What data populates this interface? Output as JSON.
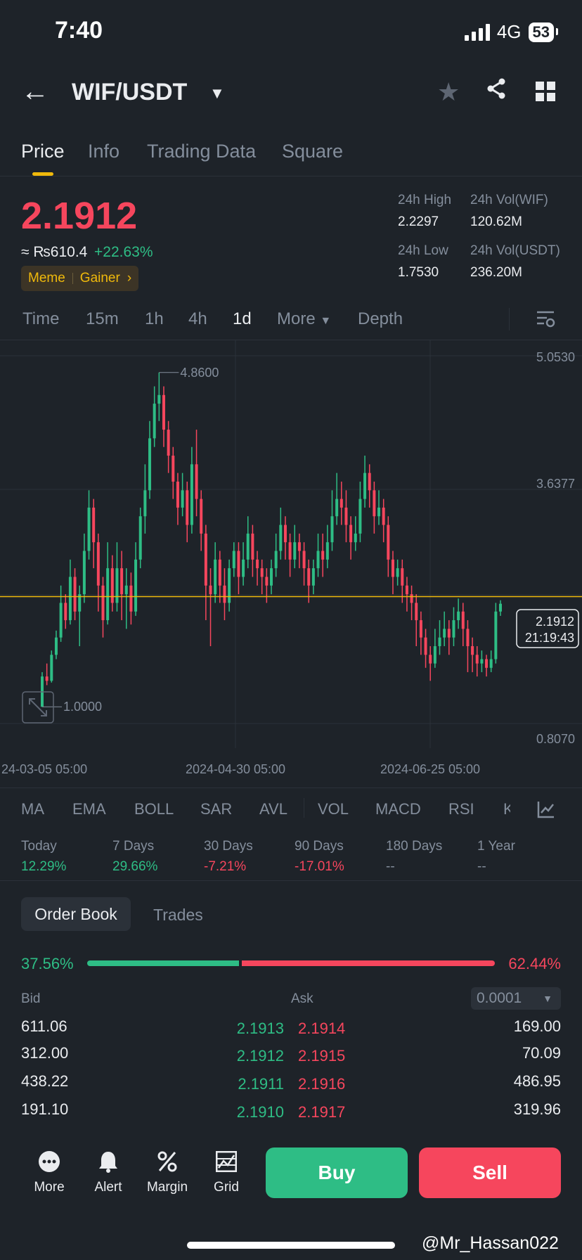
{
  "status": {
    "time": "7:40",
    "network": "4G",
    "battery": "53"
  },
  "header": {
    "pair": "WIF/USDT",
    "back_icon": "arrow-left-icon",
    "icons": [
      "star-icon",
      "share-icon",
      "grid-icon"
    ]
  },
  "tabs": [
    {
      "label": "Price",
      "active": true
    },
    {
      "label": "Info"
    },
    {
      "label": "Trading Data"
    },
    {
      "label": "Square"
    }
  ],
  "price": {
    "last": "2.1912",
    "fiat": "≈ ₨610.4",
    "change": "+22.63%",
    "tags": [
      "Meme",
      "Gainer"
    ],
    "stats": {
      "high_label": "24h High",
      "high": "2.2297",
      "low_label": "24h Low",
      "low": "1.7530",
      "vol_base_label": "24h Vol(WIF)",
      "vol_base": "120.62M",
      "vol_quote_label": "24h Vol(USDT)",
      "vol_quote": "236.20M"
    }
  },
  "intervals": [
    {
      "label": "Time"
    },
    {
      "label": "15m"
    },
    {
      "label": "1h"
    },
    {
      "label": "4h"
    },
    {
      "label": "1d",
      "active": true
    },
    {
      "label": "More"
    },
    {
      "label": "Depth"
    }
  ],
  "chart_data": {
    "type": "candlestick",
    "title": "",
    "y_ticks": [
      "5.0530",
      "3.6377",
      "0.8070"
    ],
    "x_ticks": [
      "24-03-05 05:00",
      "2024-04-30 05:00",
      "2024-06-25 05:00"
    ],
    "high_label": "4.8600",
    "low_label": "1.0000",
    "current_price": "2.1912",
    "countdown": "21:19:43",
    "ylim": [
      0.807,
      5.053
    ],
    "up_color": "#2ebd85",
    "down_color": "#f6465d",
    "candles": [
      [
        1.0,
        1.35,
        1.0,
        1.4
      ],
      [
        1.35,
        1.3,
        1.25,
        1.5
      ],
      [
        1.3,
        1.6,
        1.28,
        1.65
      ],
      [
        1.6,
        1.8,
        1.55,
        1.88
      ],
      [
        1.8,
        2.2,
        1.75,
        2.4
      ],
      [
        2.2,
        2.0,
        1.9,
        2.3
      ],
      [
        2.0,
        2.5,
        1.95,
        2.7
      ],
      [
        2.5,
        2.1,
        2.0,
        2.6
      ],
      [
        2.1,
        2.3,
        1.7,
        2.4
      ],
      [
        2.3,
        2.8,
        2.2,
        3.0
      ],
      [
        2.8,
        3.3,
        2.7,
        3.5
      ],
      [
        3.3,
        2.9,
        2.6,
        3.4
      ],
      [
        2.9,
        2.4,
        2.1,
        3.0
      ],
      [
        2.4,
        2.0,
        1.8,
        2.5
      ],
      [
        2.0,
        2.6,
        1.95,
        2.9
      ],
      [
        2.6,
        2.2,
        2.1,
        2.75
      ],
      [
        2.2,
        2.6,
        2.1,
        2.9
      ],
      [
        2.6,
        2.3,
        2.0,
        2.8
      ],
      [
        2.3,
        2.4,
        1.9,
        2.6
      ],
      [
        2.4,
        2.1,
        1.95,
        2.55
      ],
      [
        2.1,
        2.7,
        2.05,
        2.9
      ],
      [
        2.7,
        3.2,
        2.6,
        3.3
      ],
      [
        3.2,
        3.5,
        3.0,
        3.8
      ],
      [
        3.5,
        4.1,
        3.4,
        4.3
      ],
      [
        4.1,
        4.5,
        4.0,
        4.7
      ],
      [
        4.5,
        4.6,
        4.3,
        4.86
      ],
      [
        4.6,
        4.2,
        4.0,
        4.7
      ],
      [
        4.2,
        3.9,
        3.7,
        4.3
      ],
      [
        3.9,
        3.6,
        3.4,
        4.0
      ],
      [
        3.6,
        3.3,
        3.1,
        3.7
      ],
      [
        3.3,
        3.5,
        3.2,
        3.7
      ],
      [
        3.5,
        3.1,
        2.9,
        3.6
      ],
      [
        3.1,
        3.8,
        3.0,
        4.0
      ],
      [
        3.8,
        3.4,
        3.2,
        4.2
      ],
      [
        3.4,
        3.0,
        2.8,
        3.5
      ],
      [
        3.0,
        2.4,
        2.0,
        3.1
      ],
      [
        2.4,
        2.3,
        1.7,
        2.6
      ],
      [
        2.3,
        2.7,
        2.2,
        2.9
      ],
      [
        2.7,
        2.4,
        2.2,
        2.8
      ],
      [
        2.4,
        2.2,
        2.0,
        2.6
      ],
      [
        2.2,
        2.6,
        2.1,
        2.7
      ],
      [
        2.6,
        2.8,
        2.5,
        2.9
      ],
      [
        2.8,
        2.5,
        2.3,
        2.9
      ],
      [
        2.5,
        2.7,
        2.4,
        2.9
      ],
      [
        2.7,
        3.0,
        2.6,
        3.2
      ],
      [
        3.0,
        2.7,
        2.5,
        3.1
      ],
      [
        2.7,
        2.6,
        2.4,
        2.8
      ],
      [
        2.6,
        2.5,
        2.3,
        2.7
      ],
      [
        2.5,
        2.4,
        2.2,
        2.6
      ],
      [
        2.4,
        2.6,
        2.3,
        2.7
      ],
      [
        2.6,
        2.8,
        2.5,
        3.0
      ],
      [
        2.8,
        3.1,
        2.7,
        3.3
      ],
      [
        3.1,
        2.9,
        2.7,
        3.2
      ],
      [
        2.9,
        2.7,
        2.5,
        3.0
      ],
      [
        2.7,
        2.9,
        2.6,
        3.1
      ],
      [
        2.9,
        2.8,
        2.6,
        3.0
      ],
      [
        2.8,
        2.6,
        2.4,
        2.9
      ],
      [
        2.6,
        2.4,
        2.2,
        2.7
      ],
      [
        2.4,
        2.6,
        2.3,
        2.7
      ],
      [
        2.6,
        2.8,
        2.5,
        3.0
      ],
      [
        2.8,
        2.7,
        2.5,
        3.0
      ],
      [
        2.7,
        2.9,
        2.6,
        3.1
      ],
      [
        2.9,
        3.2,
        2.8,
        3.5
      ],
      [
        3.2,
        3.4,
        3.1,
        3.7
      ],
      [
        3.4,
        3.3,
        3.1,
        3.6
      ],
      [
        3.3,
        3.1,
        2.9,
        3.5
      ],
      [
        3.1,
        2.9,
        2.7,
        3.2
      ],
      [
        2.9,
        3.0,
        2.8,
        3.2
      ],
      [
        3.0,
        3.4,
        2.9,
        3.6
      ],
      [
        3.4,
        3.7,
        3.3,
        3.9
      ],
      [
        3.7,
        3.5,
        3.3,
        3.8
      ],
      [
        3.5,
        3.2,
        3.0,
        3.6
      ],
      [
        3.2,
        3.3,
        3.1,
        3.5
      ],
      [
        3.3,
        3.1,
        2.9,
        3.4
      ],
      [
        3.1,
        2.7,
        2.5,
        3.2
      ],
      [
        2.7,
        2.5,
        2.3,
        2.8
      ],
      [
        2.5,
        2.6,
        2.4,
        2.7
      ],
      [
        2.6,
        2.4,
        2.2,
        2.7
      ],
      [
        2.4,
        2.3,
        2.1,
        2.5
      ],
      [
        2.3,
        2.2,
        2.0,
        2.4
      ],
      [
        2.2,
        2.0,
        1.7,
        2.3
      ],
      [
        2.0,
        1.8,
        1.6,
        2.1
      ],
      [
        1.8,
        1.6,
        1.45,
        1.9
      ],
      [
        1.6,
        1.5,
        1.3,
        1.7
      ],
      [
        1.5,
        1.7,
        1.45,
        1.9
      ],
      [
        1.7,
        1.8,
        1.6,
        2.0
      ],
      [
        1.8,
        1.9,
        1.7,
        2.1
      ],
      [
        1.9,
        1.8,
        1.6,
        2.0
      ],
      [
        1.8,
        2.0,
        1.7,
        2.15
      ],
      [
        2.0,
        2.1,
        1.9,
        2.25
      ],
      [
        2.1,
        1.9,
        1.7,
        2.2
      ],
      [
        1.9,
        1.7,
        1.4,
        2.0
      ],
      [
        1.7,
        1.6,
        1.4,
        1.8
      ],
      [
        1.6,
        1.5,
        1.35,
        1.7
      ],
      [
        1.5,
        1.55,
        1.4,
        1.65
      ],
      [
        1.55,
        1.45,
        1.35,
        1.6
      ],
      [
        1.45,
        1.55,
        1.4,
        1.65
      ],
      [
        1.55,
        2.1,
        1.5,
        2.2
      ],
      [
        2.1,
        2.19,
        2.05,
        2.23
      ]
    ]
  },
  "indicators": [
    "MA",
    "EMA",
    "BOLL",
    "SAR",
    "AVL",
    "VOL",
    "MACD",
    "RSI",
    "K"
  ],
  "performance": [
    {
      "label": "Today",
      "value": "12.29%",
      "dir": "up"
    },
    {
      "label": "7 Days",
      "value": "29.66%",
      "dir": "up"
    },
    {
      "label": "30 Days",
      "value": "-7.21%",
      "dir": "down"
    },
    {
      "label": "90 Days",
      "value": "-17.01%",
      "dir": "down"
    },
    {
      "label": "180 Days",
      "value": "--",
      "dir": "none"
    },
    {
      "label": "1 Year",
      "value": "--",
      "dir": "none"
    }
  ],
  "orderbook": {
    "tab_orderbook": "Order Book",
    "tab_trades": "Trades",
    "bid_pct": "37.56%",
    "ask_pct": "62.44%",
    "bid_ratio": 0.3756,
    "bid_label": "Bid",
    "ask_label": "Ask",
    "precision": "0.0001",
    "rows": [
      {
        "bid_qty": "611.06",
        "bid_price": "2.1913",
        "ask_price": "2.1914",
        "ask_qty": "169.00"
      },
      {
        "bid_qty": "312.00",
        "bid_price": "2.1912",
        "ask_price": "2.1915",
        "ask_qty": "70.09"
      },
      {
        "bid_qty": "438.22",
        "bid_price": "2.1911",
        "ask_price": "2.1916",
        "ask_qty": "486.95"
      },
      {
        "bid_qty": "191.10",
        "bid_price": "2.1910",
        "ask_price": "2.1917",
        "ask_qty": "319.96"
      }
    ]
  },
  "bottom_nav": [
    {
      "label": "More",
      "icon": "more-dots-icon"
    },
    {
      "label": "Alert",
      "icon": "bell-icon"
    },
    {
      "label": "Margin",
      "icon": "percent-icon"
    },
    {
      "label": "Grid",
      "icon": "grid-trading-icon"
    }
  ],
  "actions": {
    "buy": "Buy",
    "sell": "Sell"
  },
  "watermark": "@Mr_Hassan022"
}
